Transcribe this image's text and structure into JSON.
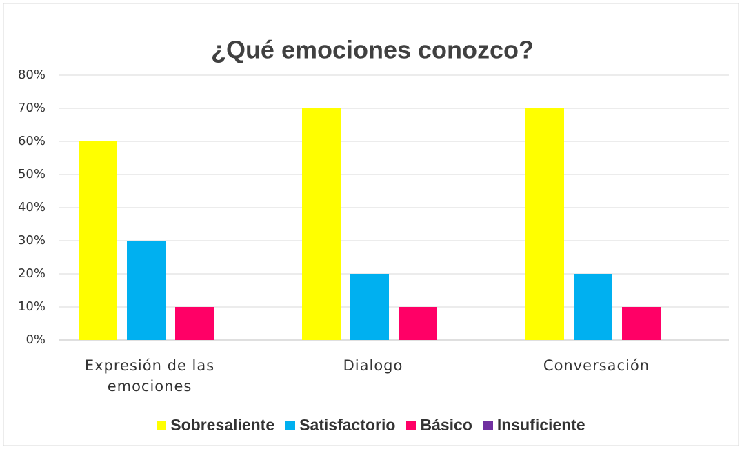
{
  "chart_data": {
    "type": "bar",
    "title": "¿Qué emociones conozco?",
    "categories": [
      "Expresión de las emociones",
      "Dialogo",
      "Conversación"
    ],
    "series": [
      {
        "name": "Sobresaliente",
        "color": "#ffff00",
        "values": [
          60,
          70,
          70
        ]
      },
      {
        "name": "Satisfactorio",
        "color": "#00b0f0",
        "values": [
          30,
          20,
          20
        ]
      },
      {
        "name": "Básico",
        "color": "#ff0066",
        "values": [
          10,
          10,
          10
        ]
      },
      {
        "name": "Insuficiente",
        "color": "#7030a0",
        "values": [
          0,
          0,
          0
        ]
      }
    ],
    "ylim": [
      0,
      80
    ],
    "yticks": [
      {
        "value": 0,
        "label": "0%"
      },
      {
        "value": 10,
        "label": "10%"
      },
      {
        "value": 20,
        "label": "20%"
      },
      {
        "value": 30,
        "label": "30%"
      },
      {
        "value": 40,
        "label": "40%"
      },
      {
        "value": 50,
        "label": "50%"
      },
      {
        "value": 60,
        "label": "60%"
      },
      {
        "value": 70,
        "label": "70%"
      },
      {
        "value": 80,
        "label": "80%"
      }
    ],
    "grid": true,
    "legend": "bottom"
  }
}
